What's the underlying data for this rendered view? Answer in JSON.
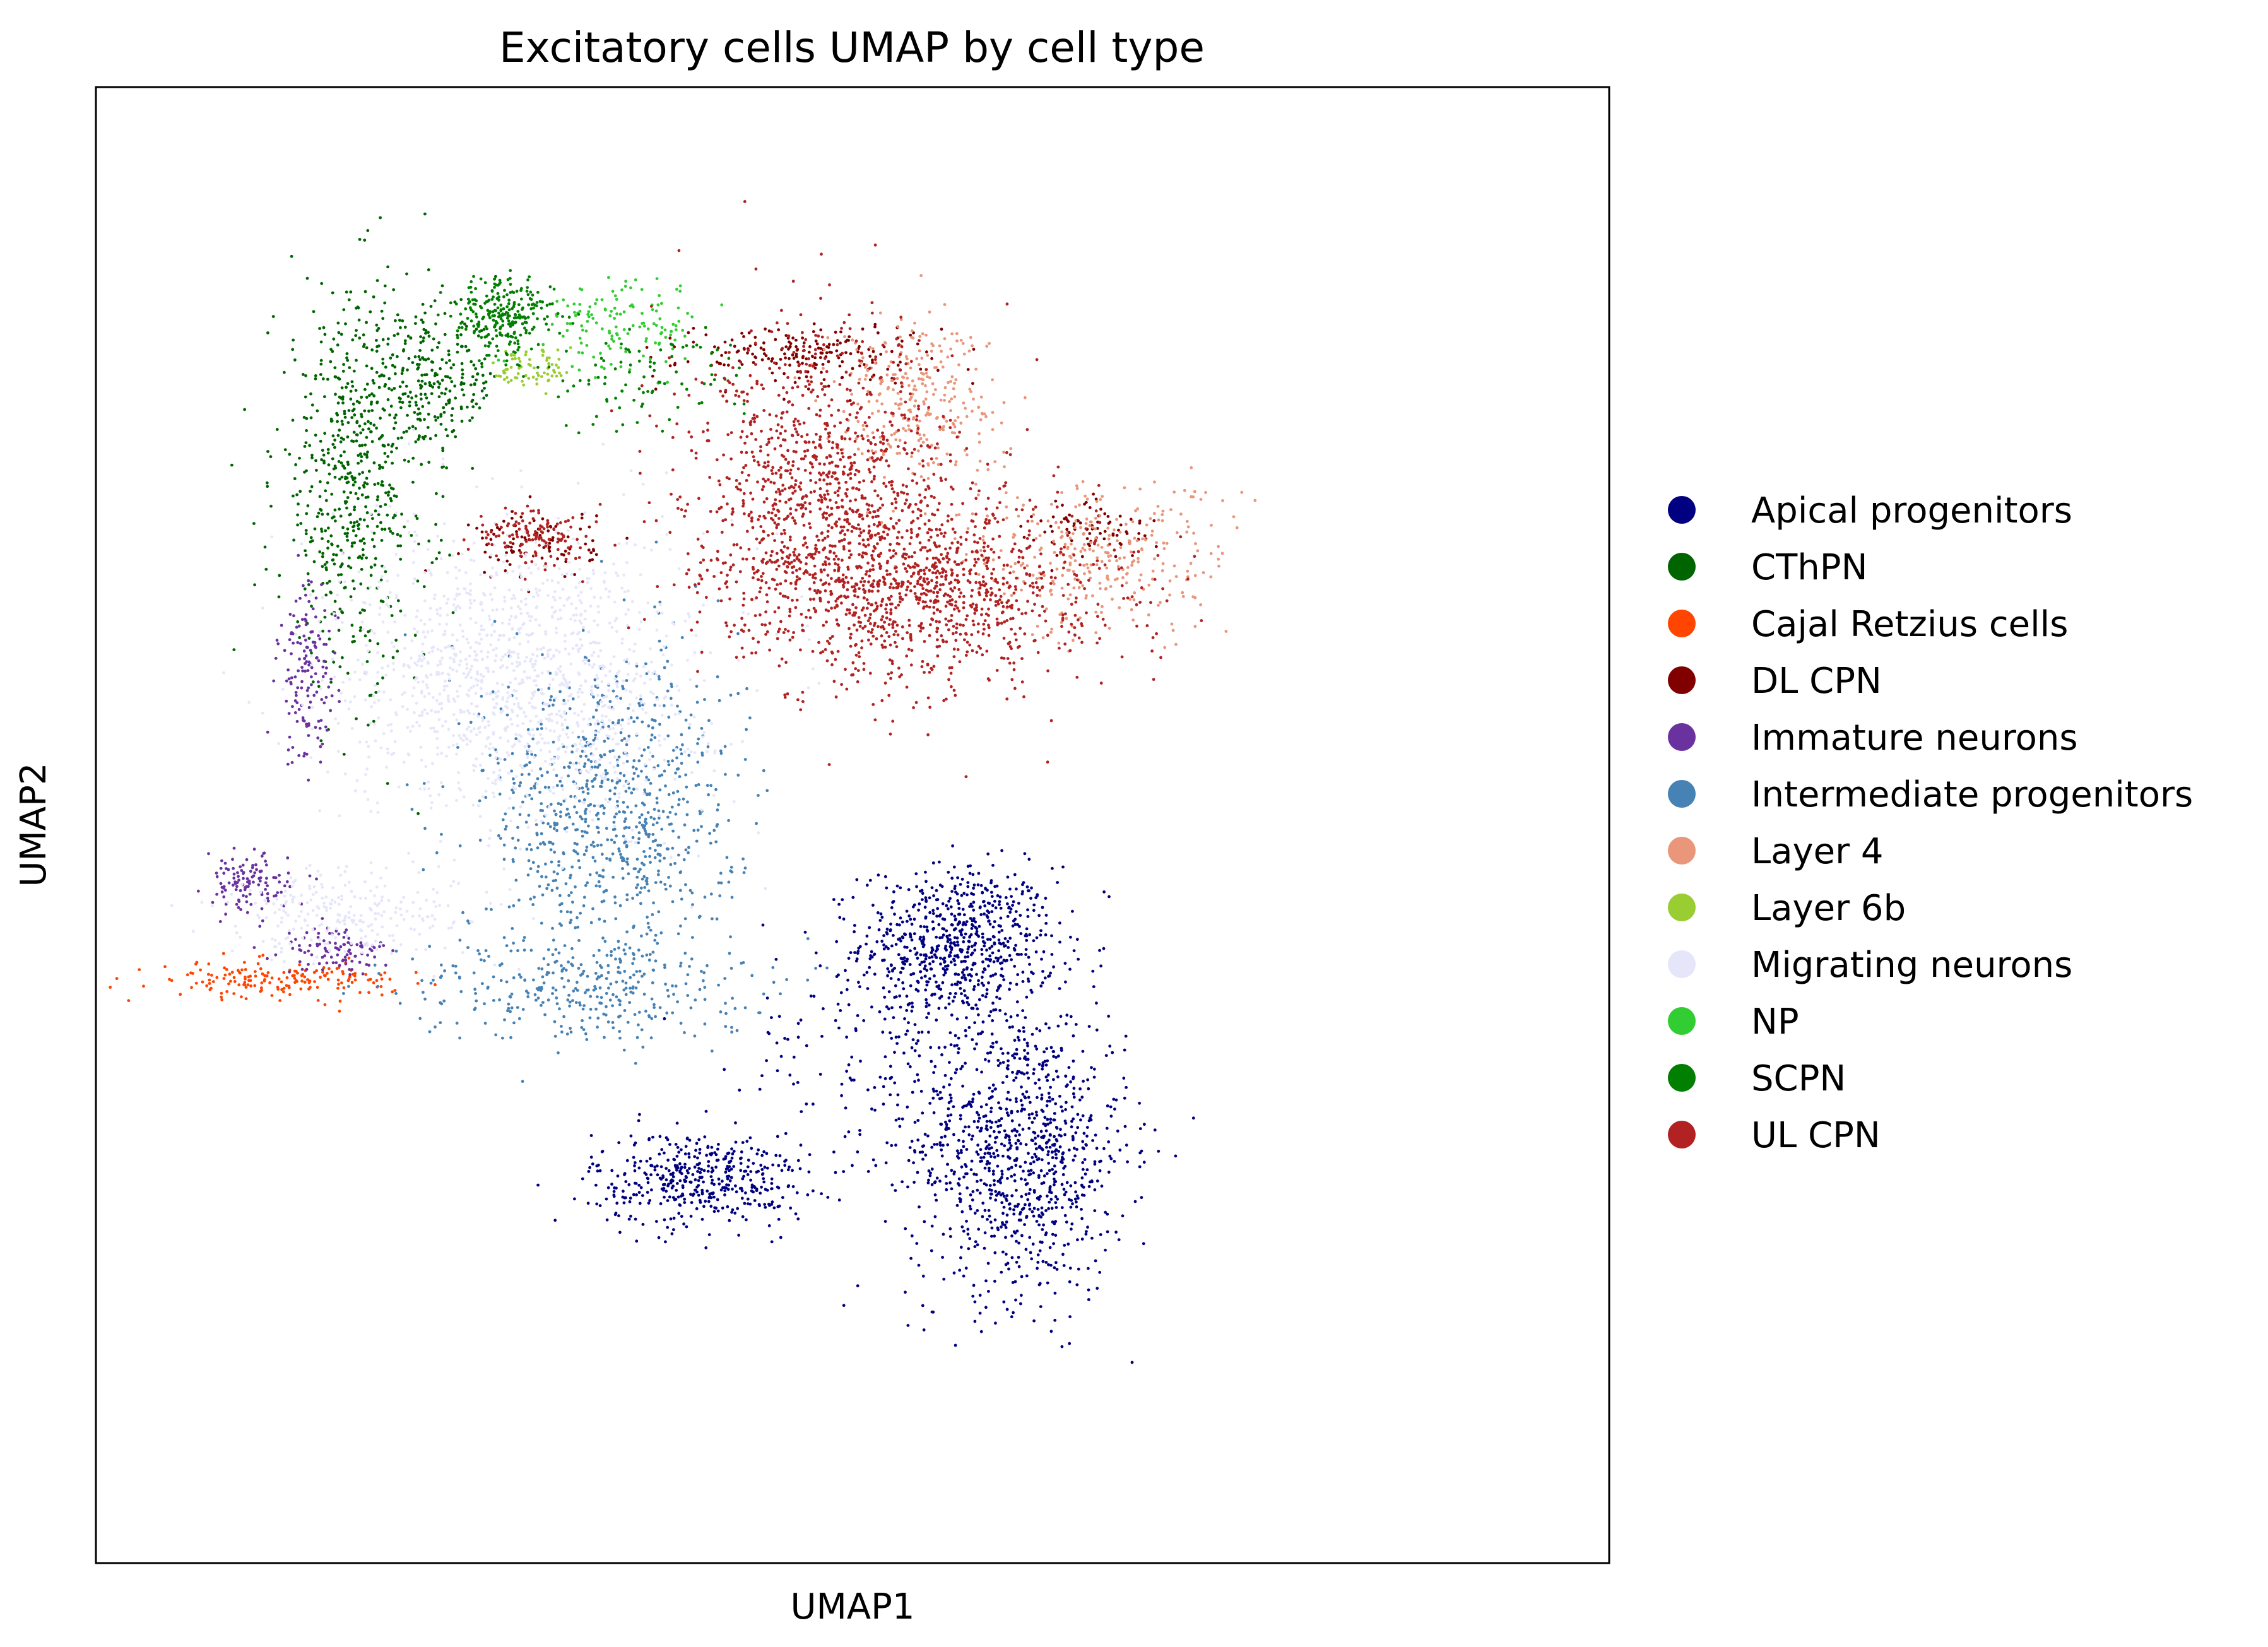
{
  "chart_data": {
    "type": "scatter",
    "title": "Excitatory cells UMAP by cell type",
    "xlabel": "UMAP1",
    "ylabel": "UMAP2",
    "xlim": [
      0,
      100
    ],
    "ylim": [
      0,
      100
    ],
    "grid": false,
    "ticks": false,
    "legend_placement": "right",
    "series": [
      {
        "name": "Apical progenitors",
        "color": "#000080",
        "clusters": [
          {
            "cx": 57,
            "cy": 42,
            "sx": 3.2,
            "sy": 2.6,
            "n": 700
          },
          {
            "cx": 61,
            "cy": 28,
            "sx": 3.6,
            "sy": 5.0,
            "n": 1000
          },
          {
            "cx": 40,
            "cy": 26,
            "sx": 3.6,
            "sy": 1.6,
            "n": 450
          },
          {
            "cx": 52,
            "cy": 35,
            "sx": 4.5,
            "sy": 4.0,
            "n": 160
          }
        ]
      },
      {
        "name": "CThPN",
        "color": "#006400",
        "clusters": [
          {
            "cx": 17,
            "cy": 73,
            "sx": 2.6,
            "sy": 6.5,
            "n": 600
          },
          {
            "cx": 22,
            "cy": 80,
            "sx": 2.4,
            "sy": 2.2,
            "n": 260
          }
        ]
      },
      {
        "name": "Cajal Retzius cells",
        "color": "#ff4500",
        "clusters": [
          {
            "cx": 12,
            "cy": 39.5,
            "sx": 4.0,
            "sy": 0.6,
            "n": 180
          }
        ]
      },
      {
        "name": "DL CPN",
        "color": "#800000",
        "clusters": [
          {
            "cx": 47,
            "cy": 82,
            "sx": 4.2,
            "sy": 1.0,
            "n": 200
          },
          {
            "cx": 66,
            "cy": 70,
            "sx": 2.0,
            "sy": 1.0,
            "n": 80
          },
          {
            "cx": 29,
            "cy": 69,
            "sx": 2.0,
            "sy": 1.2,
            "n": 100
          }
        ]
      },
      {
        "name": "Immature neurons",
        "color": "#6a329f",
        "clusters": [
          {
            "cx": 14,
            "cy": 60,
            "sx": 1.0,
            "sy": 3.0,
            "n": 150
          },
          {
            "cx": 10,
            "cy": 46,
            "sx": 1.4,
            "sy": 1.0,
            "n": 120
          },
          {
            "cx": 16,
            "cy": 41.5,
            "sx": 1.8,
            "sy": 0.8,
            "n": 100
          }
        ]
      },
      {
        "name": "Intermediate progenitors",
        "color": "#4682b4",
        "clusters": [
          {
            "cx": 34,
            "cy": 51,
            "sx": 4.2,
            "sy": 5.5,
            "n": 850
          },
          {
            "cx": 32,
            "cy": 39,
            "sx": 5.5,
            "sy": 1.8,
            "n": 320
          }
        ]
      },
      {
        "name": "Layer 4",
        "color": "#e9967a",
        "clusters": [
          {
            "cx": 54,
            "cy": 79,
            "sx": 2.8,
            "sy": 2.8,
            "n": 300
          },
          {
            "cx": 66,
            "cy": 68,
            "sx": 4.5,
            "sy": 2.6,
            "n": 320
          }
        ]
      },
      {
        "name": "Layer 6b",
        "color": "#9acd32",
        "clusters": [
          {
            "cx": 29,
            "cy": 81,
            "sx": 1.3,
            "sy": 0.8,
            "n": 70
          }
        ]
      },
      {
        "name": "Migrating neurons",
        "color": "#e6e6fa",
        "clusters": [
          {
            "cx": 28,
            "cy": 60,
            "sx": 6.0,
            "sy": 5.0,
            "n": 1300
          },
          {
            "cx": 17,
            "cy": 44,
            "sx": 4.5,
            "sy": 1.5,
            "n": 250
          }
        ]
      },
      {
        "name": "NP",
        "color": "#32cd32",
        "clusters": [
          {
            "cx": 35,
            "cy": 84,
            "sx": 2.6,
            "sy": 1.6,
            "n": 140
          }
        ]
      },
      {
        "name": "SCPN",
        "color": "#007f00",
        "clusters": [
          {
            "cx": 27,
            "cy": 84.5,
            "sx": 1.6,
            "sy": 1.4,
            "n": 260
          },
          {
            "cx": 36,
            "cy": 80,
            "sx": 3.5,
            "sy": 1.8,
            "n": 90
          }
        ]
      },
      {
        "name": "UL CPN",
        "color": "#b22222",
        "clusters": [
          {
            "cx": 48,
            "cy": 73,
            "sx": 4.4,
            "sy": 5.0,
            "n": 1000
          },
          {
            "cx": 55,
            "cy": 66,
            "sx": 6.0,
            "sy": 3.2,
            "n": 1100
          },
          {
            "cx": 29,
            "cy": 69.5,
            "sx": 2.0,
            "sy": 1.0,
            "n": 120
          }
        ]
      }
    ]
  }
}
